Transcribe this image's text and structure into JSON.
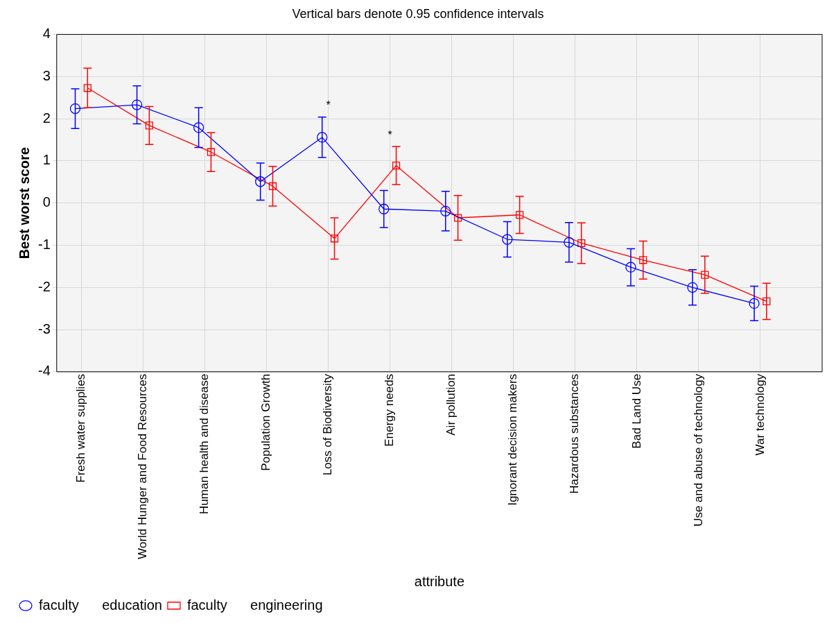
{
  "chart_data": {
    "type": "line",
    "title": "Vertical bars denote 0.95 confidence intervals",
    "xlabel": "attribute",
    "ylabel": "Best worst score",
    "categories": [
      "Fresh water supplies",
      "World Hunger and Food Resources",
      "Human health and disease",
      "Population Growth",
      "Loss of Biodiversity",
      "Energy needs",
      "Air pollution",
      "Ignorant decision makers",
      "Hazardous substances",
      "Bad Land Use",
      "Use and abuse of technology",
      "War technology"
    ],
    "series": [
      {
        "name": "faculty      education",
        "color": "#0000ff",
        "marker": "circle",
        "values": [
          2.24,
          2.33,
          1.79,
          0.51,
          1.56,
          -0.14,
          -0.19,
          -0.86,
          -0.93,
          -1.52,
          -2.0,
          -2.38
        ],
        "errors": [
          0.47,
          0.45,
          0.47,
          0.44,
          0.48,
          0.44,
          0.47,
          0.42,
          0.47,
          0.44,
          0.42,
          0.41
        ]
      },
      {
        "name": "faculty      engineering",
        "color": "#ff0000",
        "marker": "square",
        "values": [
          2.73,
          1.84,
          1.21,
          0.4,
          -0.84,
          0.89,
          -0.35,
          -0.28,
          -0.95,
          -1.35,
          -1.7,
          -2.33
        ],
        "errors": [
          0.47,
          0.45,
          0.46,
          0.47,
          0.49,
          0.45,
          0.53,
          0.44,
          0.48,
          0.45,
          0.44,
          0.43
        ]
      }
    ],
    "ylim": [
      -4,
      4
    ],
    "yticks": [
      -4,
      -3,
      -2,
      -1,
      0,
      1,
      2,
      3,
      4
    ],
    "grid": true,
    "legend": "bottom left",
    "line_style": "solid",
    "annotations": [
      "*",
      "*"
    ]
  }
}
